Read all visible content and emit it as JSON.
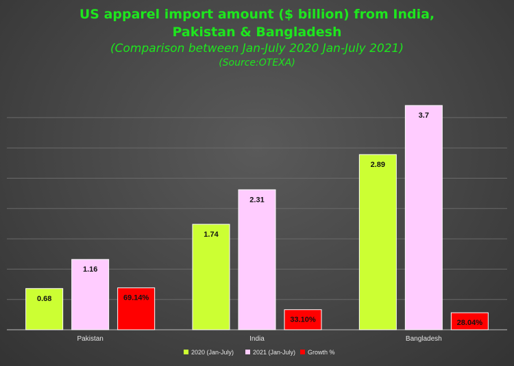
{
  "chart_data": {
    "type": "bar",
    "title": "US apparel import amount ($ billion) from India, Pakistan & Bangladesh",
    "title_lines": [
      "US apparel import amount ($ billion) from India,",
      "Pakistan & Bangladesh"
    ],
    "subtitle": "(Comparison  between  Jan-July  2020  Jan-July  2021)",
    "source": "(Source:OTEXA)",
    "categories": [
      "Pakistan",
      "India",
      "Bangladesh"
    ],
    "series": [
      {
        "name": "2020 (Jan-July)",
        "color": "#ccff33",
        "values": [
          0.68,
          1.74,
          2.89
        ],
        "labels": [
          "0.68",
          "1.74",
          "2.89"
        ]
      },
      {
        "name": "2021 (Jan-July)",
        "color": "#ffccff",
        "values": [
          1.16,
          2.31,
          3.7
        ],
        "labels": [
          "1.16",
          "2.31",
          "3.7"
        ]
      },
      {
        "name": "Growth %",
        "color": "#ff0000",
        "values": [
          0.6914,
          0.331,
          0.2804
        ],
        "labels": [
          "69.14%",
          "33.10%",
          "28.04%"
        ]
      }
    ],
    "ylim": [
      0,
      4
    ],
    "grid": true,
    "legend": "bottom",
    "xlabel": "",
    "ylabel": ""
  }
}
